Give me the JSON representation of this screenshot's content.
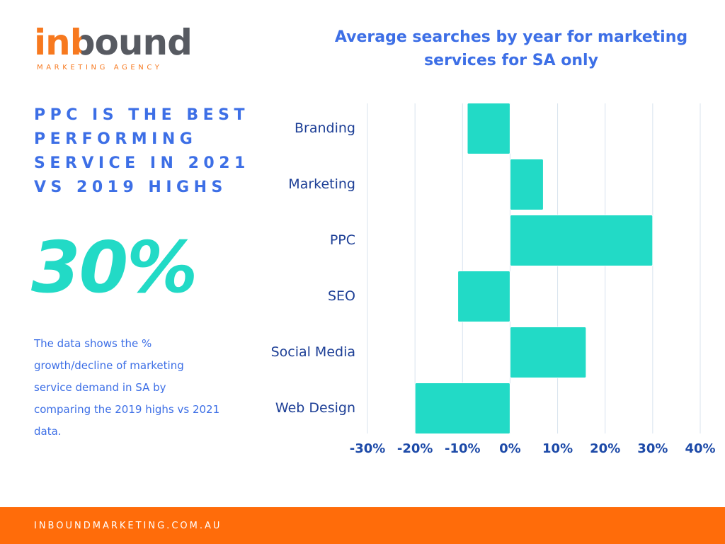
{
  "logo": {
    "name": "inbound",
    "tagline": "MARKETING AGENCY"
  },
  "headline": [
    "PPC IS THE BEST",
    "PERFORMING",
    "SERVICE IN 2021",
    "VS 2019 HIGHS"
  ],
  "big_number": "30%",
  "description": [
    "The data shows the %",
    "growth/decline of marketing",
    "service demand in SA by",
    "comparing the 2019 highs vs 2021",
    "data."
  ],
  "footer": "INBOUNDMARKETING.COM.AU",
  "chart_data": {
    "type": "bar",
    "orientation": "horizontal",
    "title": "Average searches by year for marketing services for SA only",
    "categories": [
      "Branding",
      "Marketing",
      "PPC",
      "SEO",
      "Social Media",
      "Web Design"
    ],
    "values": [
      -9,
      7,
      30,
      -11,
      16,
      -20
    ],
    "color": "#22dac6",
    "xlim": [
      -30,
      40
    ],
    "xticks": [
      {
        "value": -30,
        "label": "-30%"
      },
      {
        "value": -20,
        "label": "-20%"
      },
      {
        "value": -10,
        "label": "-10%"
      },
      {
        "value": 0,
        "label": "0%"
      },
      {
        "value": 10,
        "label": "10%"
      },
      {
        "value": 20,
        "label": "20%"
      },
      {
        "value": 30,
        "label": "30%"
      },
      {
        "value": 40,
        "label": "40%"
      }
    ],
    "grid": true
  }
}
